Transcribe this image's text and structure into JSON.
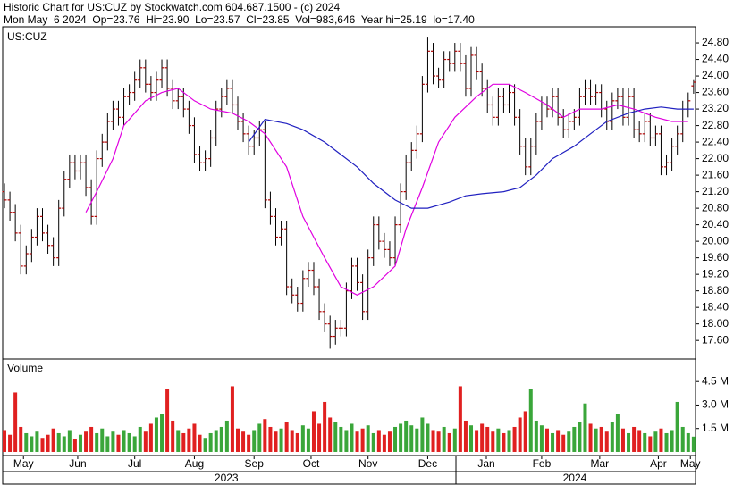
{
  "chart_data": [
    {
      "type": "ohlc",
      "title": "Historic Chart for US:CUZ by Stockwatch.com 604.687.1500 - (c) 2024",
      "subtitle": "Mon May  6 2024  Op=23.76  Hi=23.90  Lo=23.57  Cl=23.85  Vol=983,646  Year hi=25.19  lo=17.40",
      "label": "US:CUZ",
      "open": [
        21.2,
        21.0,
        20.7,
        20.2,
        19.4,
        19.7,
        20.1,
        20.6,
        20.2,
        19.9,
        19.6,
        20.8,
        21.5,
        21.9,
        21.7,
        21.9,
        21.3,
        20.6,
        22.0,
        22.4,
        22.9,
        23.2,
        23.0,
        23.5,
        23.6,
        23.9,
        24.2,
        23.8,
        23.6,
        23.9,
        24.2,
        23.7,
        23.4,
        23.5,
        23.2,
        22.8,
        22.1,
        21.9,
        22.0,
        22.5,
        23.2,
        23.5,
        23.7,
        23.3,
        22.9,
        22.6,
        22.3,
        22.5,
        22.7,
        21.0,
        20.6,
        20.1,
        20.3,
        18.9,
        18.7,
        18.5,
        19.1,
        19.3,
        18.9,
        18.3,
        18.0,
        17.7,
        17.9,
        17.9,
        18.8,
        19.4,
        19.0,
        18.3,
        19.6,
        20.4,
        20.0,
        19.8,
        19.6,
        20.4,
        21.2,
        21.9,
        22.2,
        22.6,
        23.8,
        24.6,
        24.0,
        23.9,
        24.4,
        24.3,
        24.6,
        24.3,
        23.7,
        24.5,
        24.1,
        23.7,
        23.3,
        23.0,
        23.5,
        23.3,
        23.6,
        23.0,
        22.3,
        21.8,
        22.3,
        22.9,
        23.3,
        23.2,
        23.5,
        23.0,
        22.7,
        22.9,
        23.0,
        23.5,
        23.7,
        23.5,
        23.6,
        23.2,
        22.9,
        23.4,
        23.5,
        23.0,
        23.5,
        22.7,
        22.6,
        22.9,
        22.5,
        22.6,
        21.8,
        21.9,
        22.3,
        22.6,
        23.2,
        23.76
      ],
      "high": [
        21.4,
        21.2,
        20.9,
        20.4,
        19.9,
        20.3,
        20.8,
        20.8,
        20.4,
        20.1,
        21.0,
        21.7,
        22.1,
        22.1,
        22.1,
        22.1,
        21.5,
        22.2,
        22.6,
        23.1,
        23.4,
        23.4,
        23.7,
        23.8,
        24.1,
        24.4,
        24.4,
        24.0,
        24.1,
        24.4,
        24.4,
        23.9,
        23.7,
        23.7,
        23.4,
        23.0,
        22.3,
        22.2,
        22.7,
        23.4,
        23.7,
        23.9,
        23.9,
        23.5,
        23.1,
        22.8,
        22.7,
        22.9,
        22.9,
        21.2,
        20.8,
        20.5,
        20.5,
        19.1,
        18.9,
        19.3,
        19.5,
        19.5,
        19.1,
        18.5,
        18.2,
        18.1,
        18.1,
        19.0,
        19.6,
        19.6,
        19.2,
        19.8,
        20.6,
        20.6,
        20.2,
        20.0,
        20.6,
        21.4,
        22.1,
        22.4,
        22.8,
        24.0,
        24.95,
        24.8,
        24.2,
        24.6,
        24.6,
        24.8,
        24.8,
        24.5,
        24.7,
        24.7,
        24.3,
        23.9,
        23.5,
        23.7,
        23.7,
        23.8,
        23.8,
        23.2,
        22.5,
        22.5,
        23.1,
        23.5,
        23.5,
        23.7,
        23.7,
        23.2,
        23.1,
        23.2,
        23.7,
        23.9,
        23.9,
        23.8,
        23.8,
        23.4,
        23.6,
        23.7,
        23.7,
        23.7,
        23.7,
        22.9,
        23.1,
        23.1,
        22.8,
        22.8,
        22.1,
        22.5,
        22.8,
        23.4,
        23.6,
        23.9
      ],
      "low": [
        20.8,
        20.5,
        20.0,
        19.2,
        19.2,
        19.5,
        19.9,
        20.0,
        19.7,
        19.4,
        19.4,
        20.6,
        21.3,
        21.5,
        21.5,
        21.1,
        20.4,
        20.4,
        21.8,
        22.2,
        22.7,
        22.8,
        22.8,
        23.3,
        23.4,
        23.7,
        23.6,
        23.4,
        23.4,
        23.7,
        23.5,
        23.2,
        23.2,
        23.0,
        22.6,
        21.9,
        21.7,
        21.7,
        21.8,
        22.3,
        23.0,
        23.3,
        23.1,
        22.7,
        22.4,
        22.1,
        22.1,
        22.3,
        20.8,
        20.4,
        19.9,
        19.9,
        18.7,
        18.5,
        18.3,
        18.3,
        18.9,
        18.7,
        18.1,
        17.8,
        17.4,
        17.5,
        17.7,
        17.7,
        18.6,
        18.8,
        18.1,
        18.1,
        19.4,
        19.8,
        19.6,
        19.4,
        19.4,
        20.2,
        21.0,
        21.7,
        22.0,
        22.4,
        23.6,
        23.8,
        23.7,
        23.7,
        24.1,
        24.1,
        24.1,
        23.5,
        23.5,
        23.9,
        23.5,
        23.1,
        22.8,
        22.8,
        23.1,
        23.1,
        22.8,
        22.1,
        21.6,
        21.6,
        22.1,
        22.7,
        23.0,
        23.0,
        22.8,
        22.5,
        22.5,
        22.7,
        22.8,
        23.3,
        23.3,
        23.3,
        23.0,
        22.7,
        22.7,
        23.2,
        22.8,
        22.8,
        22.5,
        22.4,
        22.4,
        22.3,
        22.3,
        21.6,
        21.6,
        21.7,
        22.1,
        22.4,
        23.0,
        23.57
      ],
      "close": [
        21.0,
        20.7,
        20.2,
        19.4,
        19.7,
        20.1,
        20.6,
        20.2,
        19.9,
        19.6,
        20.8,
        21.5,
        21.9,
        21.7,
        21.9,
        21.3,
        20.6,
        22.0,
        22.4,
        22.9,
        23.2,
        23.0,
        23.5,
        23.6,
        23.9,
        24.2,
        23.8,
        23.6,
        23.9,
        24.2,
        23.7,
        23.4,
        23.5,
        23.2,
        22.8,
        22.1,
        21.9,
        22.0,
        22.5,
        23.2,
        23.5,
        23.7,
        23.3,
        22.9,
        22.6,
        22.3,
        22.5,
        22.7,
        21.0,
        20.6,
        20.1,
        20.3,
        18.9,
        18.7,
        18.5,
        19.1,
        19.3,
        18.9,
        18.3,
        18.0,
        17.7,
        17.9,
        17.9,
        18.8,
        19.4,
        19.0,
        18.3,
        19.6,
        20.4,
        20.0,
        19.8,
        19.6,
        20.4,
        21.2,
        21.9,
        22.2,
        22.6,
        23.8,
        24.6,
        24.0,
        23.9,
        24.4,
        24.3,
        24.6,
        24.3,
        23.7,
        24.5,
        24.1,
        23.7,
        23.3,
        23.0,
        23.5,
        23.3,
        23.6,
        23.0,
        22.3,
        21.8,
        22.3,
        22.9,
        23.3,
        23.2,
        23.5,
        23.0,
        22.7,
        22.9,
        23.0,
        23.5,
        23.7,
        23.5,
        23.6,
        23.2,
        22.9,
        23.4,
        23.5,
        23.0,
        23.5,
        22.7,
        22.6,
        22.9,
        22.5,
        22.6,
        21.8,
        21.9,
        22.3,
        22.6,
        23.2,
        23.4,
        23.85
      ],
      "bar_color": "#000000",
      "tick_color": "#b00000",
      "lines": [
        {
          "color": "#e000e0",
          "x": [
            15,
            17,
            20,
            22,
            26,
            29,
            32,
            35,
            38,
            42,
            45,
            48,
            52,
            55,
            59,
            62,
            65,
            68,
            72,
            74,
            77,
            80,
            83,
            87,
            90,
            93,
            96,
            100,
            103,
            106,
            110,
            113,
            116,
            120,
            123,
            126
          ],
          "values": [
            20.7,
            21.2,
            22.0,
            22.8,
            23.4,
            23.6,
            23.7,
            23.4,
            23.2,
            23.1,
            22.9,
            22.6,
            21.8,
            20.6,
            19.6,
            18.9,
            18.7,
            18.9,
            19.4,
            20.3,
            21.3,
            22.4,
            23.0,
            23.5,
            23.8,
            23.8,
            23.6,
            23.3,
            23.0,
            23.2,
            23.2,
            23.3,
            23.2,
            23.0,
            22.9,
            22.9
          ]
        },
        {
          "color": "#2020c0",
          "x": [
            45,
            48,
            52,
            55,
            59,
            62,
            65,
            68,
            72,
            75,
            78,
            82,
            85,
            88,
            92,
            95,
            98,
            101,
            105,
            108,
            111,
            115,
            118,
            121,
            124,
            127
          ],
          "values": [
            22.4,
            22.95,
            22.85,
            22.7,
            22.4,
            22.1,
            21.8,
            21.4,
            21.0,
            20.8,
            20.8,
            20.95,
            21.1,
            21.15,
            21.2,
            21.3,
            21.6,
            22.0,
            22.3,
            22.6,
            22.9,
            23.1,
            23.2,
            23.25,
            23.2,
            23.2
          ]
        }
      ],
      "xlim": [
        -0.33,
        127.35
      ],
      "ylim": [
        17.15,
        25.19
      ],
      "yticks": [
        {
          "value": 17.6,
          "label": "17.60"
        },
        {
          "value": 18.0,
          "label": "18.00"
        },
        {
          "value": 18.4,
          "label": "18.40"
        },
        {
          "value": 18.8,
          "label": "18.80"
        },
        {
          "value": 19.2,
          "label": "19.20"
        },
        {
          "value": 19.6,
          "label": "19.60"
        },
        {
          "value": 20.0,
          "label": "20.00"
        },
        {
          "value": 20.4,
          "label": "20.40"
        },
        {
          "value": 20.8,
          "label": "20.80"
        },
        {
          "value": 21.2,
          "label": "21.20"
        },
        {
          "value": 21.6,
          "label": "21.60"
        },
        {
          "value": 22.0,
          "label": "22.00"
        },
        {
          "value": 22.4,
          "label": "22.40"
        },
        {
          "value": 22.8,
          "label": "22.80"
        },
        {
          "value": 23.2,
          "label": "23.20"
        },
        {
          "value": 23.6,
          "label": "23.60"
        },
        {
          "value": 24.0,
          "label": "24.00"
        },
        {
          "value": 24.4,
          "label": "24.40"
        },
        {
          "value": 24.8,
          "label": "24.80"
        }
      ]
    },
    {
      "type": "bar",
      "label": "Volume",
      "values": [
        1.4,
        1.1,
        3.8,
        1.6,
        1.2,
        1.0,
        1.3,
        0.9,
        1.1,
        1.5,
        1.2,
        1.0,
        1.4,
        0.8,
        1.1,
        1.3,
        1.6,
        1.2,
        1.5,
        1.0,
        1.3,
        1.1,
        1.4,
        1.2,
        1.0,
        1.6,
        1.3,
        1.8,
        2.2,
        2.4,
        4.0,
        2.0,
        1.4,
        1.2,
        1.5,
        1.8,
        1.1,
        0.9,
        1.2,
        1.4,
        1.6,
        2.0,
        4.2,
        1.5,
        1.3,
        1.1,
        1.4,
        1.8,
        2.1,
        1.6,
        1.3,
        1.5,
        1.9,
        1.4,
        1.2,
        1.7,
        1.5,
        2.6,
        1.8,
        3.2,
        2.2,
        1.9,
        1.6,
        1.4,
        1.8,
        1.3,
        1.5,
        1.7,
        1.2,
        1.4,
        1.1,
        1.3,
        1.6,
        1.8,
        2.0,
        1.7,
        1.5,
        2.2,
        1.8,
        1.4,
        1.3,
        1.6,
        1.2,
        1.5,
        4.2,
        2.0,
        1.7,
        1.4,
        1.8,
        1.6,
        1.3,
        1.5,
        1.2,
        1.4,
        1.6,
        2.2,
        2.6,
        4.0,
        2.0,
        1.7,
        1.5,
        1.2,
        1.4,
        1.1,
        1.3,
        1.6,
        1.9,
        3.1,
        1.8,
        1.5,
        1.6,
        1.3,
        1.9,
        2.4,
        1.5,
        1.2,
        1.6,
        1.4,
        1.2,
        1.0,
        1.3,
        1.5,
        1.2,
        1.4,
        3.2,
        1.6,
        1.2,
        0.98
      ],
      "up_color": "#3aa63a",
      "down_color": "#e02020",
      "xlim": [
        -0.33,
        127.35
      ],
      "ylim": [
        -0.23,
        5.94
      ],
      "yticks": [
        {
          "value": 1.5,
          "label": "1.5 M"
        },
        {
          "value": 3.0,
          "label": "3.0 M"
        },
        {
          "value": 4.5,
          "label": "4.5 M"
        }
      ],
      "xticks": [
        {
          "value": 3.5,
          "label": "May"
        },
        {
          "value": 13.5,
          "label": "Jun"
        },
        {
          "value": 24,
          "label": "Jul"
        },
        {
          "value": 35,
          "label": "Aug"
        },
        {
          "value": 46,
          "label": "Sep"
        },
        {
          "value": 56.5,
          "label": "Oct"
        },
        {
          "value": 67,
          "label": "Nov"
        },
        {
          "value": 78,
          "label": "Dec"
        },
        {
          "value": 88.8,
          "label": "Jan"
        },
        {
          "value": 99,
          "label": "Feb"
        },
        {
          "value": 109.7,
          "label": "Mar"
        },
        {
          "value": 120.5,
          "label": "Apr"
        },
        {
          "value": 126.4,
          "label": "May"
        }
      ],
      "year_ticks": [
        {
          "value": 40.9,
          "label": "2023"
        },
        {
          "value": 105.1,
          "label": "2024"
        }
      ],
      "year_divider": 83.2
    }
  ]
}
